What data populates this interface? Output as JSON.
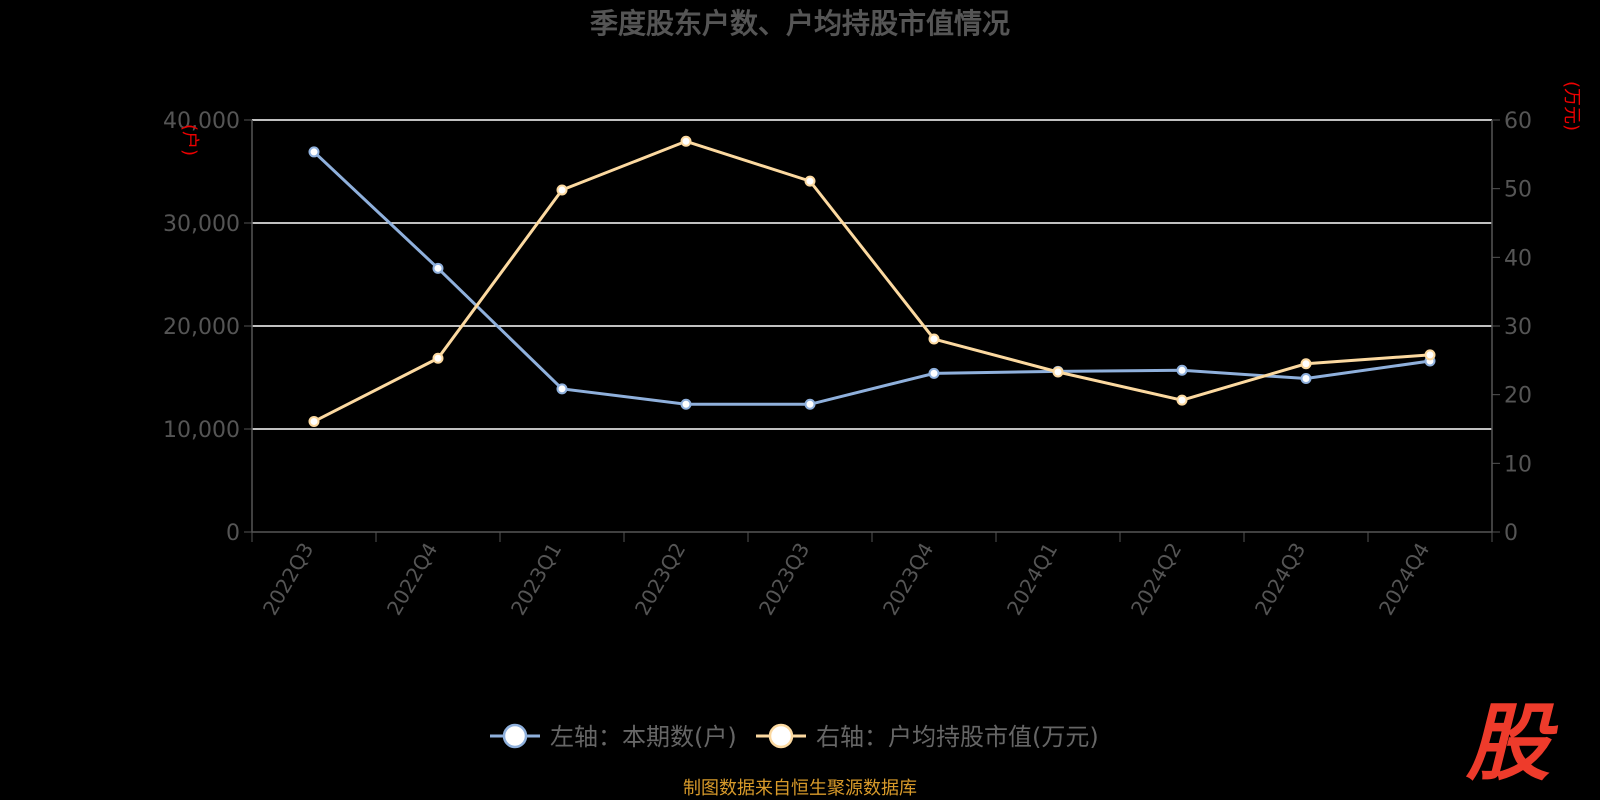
{
  "chart_data": {
    "type": "line",
    "title": "季度股东户数、户均持股市值情况",
    "categories": [
      "2022Q3",
      "2022Q4",
      "2023Q1",
      "2023Q2",
      "2023Q3",
      "2023Q4",
      "2024Q1",
      "2024Q2",
      "2024Q3",
      "2024Q4"
    ],
    "y_left": {
      "unit": "(户)",
      "range": [
        0,
        40000
      ],
      "ticks": [
        "0",
        "10,000",
        "20,000",
        "30,000",
        "40,000"
      ]
    },
    "y_right": {
      "unit": "(万元)",
      "range": [
        0,
        60
      ],
      "ticks": [
        "0",
        "10",
        "20",
        "30",
        "40",
        "50",
        "60"
      ]
    },
    "grid": true,
    "legend_position": "bottom",
    "series": [
      {
        "name": "左轴：本期数(户)",
        "axis": "left",
        "color": "#8fb0dc",
        "values": [
          36900,
          25600,
          13900,
          12400,
          12400,
          15400,
          15600,
          15700,
          14900,
          16600
        ]
      },
      {
        "name": "右轴：户均持股市值(万元)",
        "axis": "right",
        "color": "#fcd9a0",
        "values": [
          16.1,
          25.3,
          49.8,
          56.9,
          51.1,
          28.1,
          23.3,
          19.2,
          24.5,
          25.8
        ]
      }
    ]
  },
  "source": "制图数据来自恒生聚源数据库",
  "logo": "股"
}
